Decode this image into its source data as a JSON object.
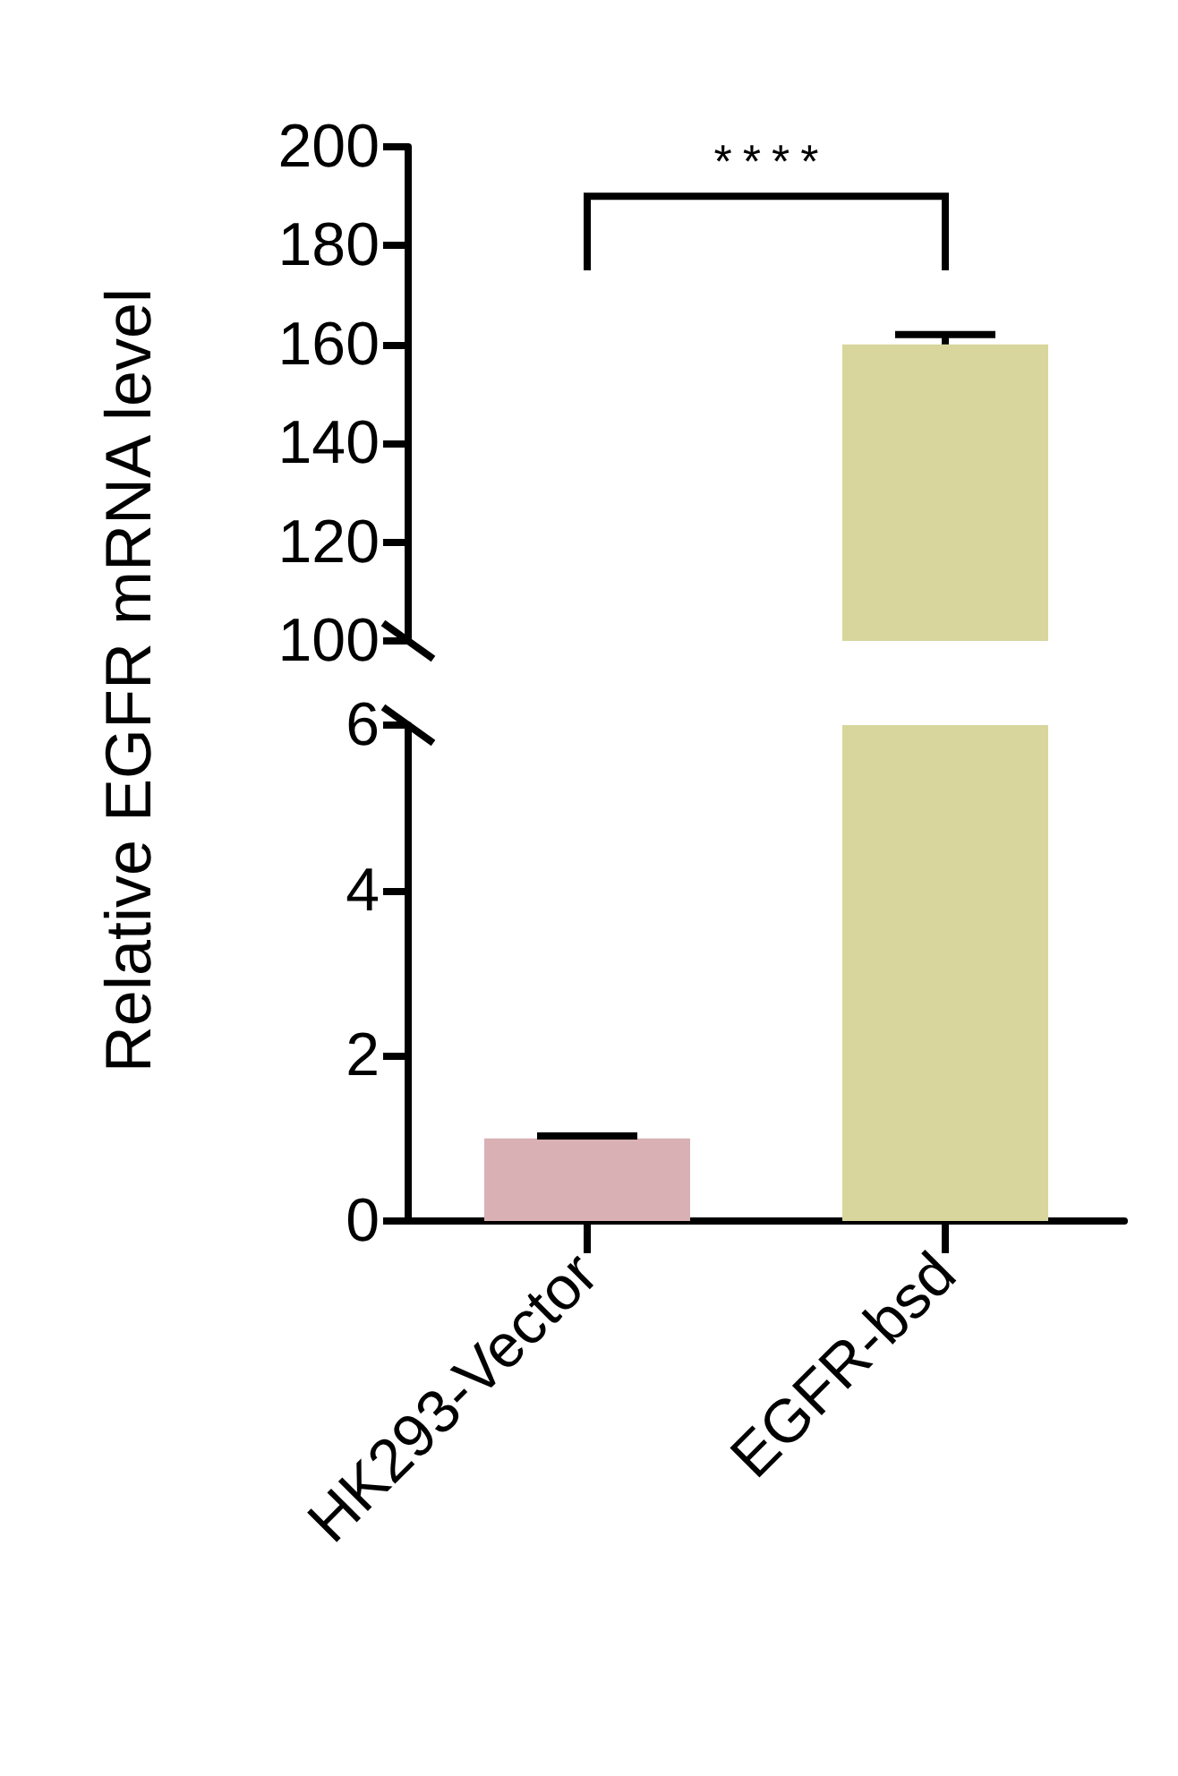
{
  "chart_data": [
    {
      "type": "bar",
      "ylabel": "Relative EGFR mRNA level",
      "values": [
        null,
        160
      ],
      "colors": [
        "#d9b0b3",
        "#d8d69c"
      ],
      "errors": [
        null,
        [
          160,
          162
        ]
      ],
      "ylim": [
        100,
        200
      ],
      "yticks": [
        100,
        120,
        140,
        160,
        180,
        200
      ],
      "tick_labels": "y",
      "grid": false,
      "annotations": [
        "****"
      ]
    },
    {
      "type": "bar",
      "categories": [
        "HK293-Vector",
        "EGFR-bsd"
      ],
      "values": [
        1,
        6
      ],
      "colors": [
        "#d9b0b3",
        "#d8d69c"
      ],
      "errors": [
        [
          1,
          1.03
        ],
        null
      ],
      "ylim": [
        0,
        6
      ],
      "yticks": [
        0,
        2,
        4,
        6
      ],
      "grid": false
    }
  ]
}
